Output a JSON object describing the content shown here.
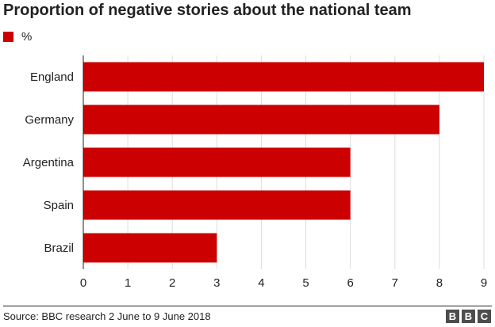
{
  "chart_data": {
    "type": "bar",
    "orientation": "horizontal",
    "title": "Proportion of negative stories about the national team",
    "categories": [
      "England",
      "Germany",
      "Argentina",
      "Spain",
      "Brazil"
    ],
    "series": [
      {
        "name": "%",
        "values": [
          9,
          8,
          6,
          6,
          3
        ]
      }
    ],
    "xlim": [
      0,
      9
    ],
    "xticks": [
      0,
      1,
      2,
      3,
      4,
      5,
      6,
      7,
      8,
      9
    ],
    "grid": true,
    "legend_position": "top-left",
    "color": "#cc0000"
  },
  "footer": {
    "source": "Source: BBC research 2 June to 9 June 2018",
    "logo_letters": [
      "B",
      "B",
      "C"
    ]
  }
}
